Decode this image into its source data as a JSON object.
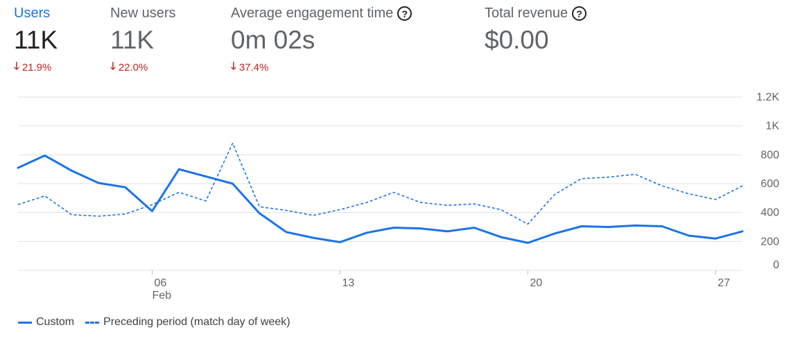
{
  "metrics": [
    {
      "title": "Users",
      "value": "11K",
      "delta": "21.9%",
      "active": true,
      "help": false
    },
    {
      "title": "New users",
      "value": "11K",
      "delta": "22.0%",
      "active": false,
      "help": false
    },
    {
      "title": "Average engagement time",
      "value": "0m 02s",
      "delta": "37.4%",
      "active": false,
      "help": true
    },
    {
      "title": "Total revenue",
      "value": "$0.00",
      "delta": "",
      "active": false,
      "help": true
    }
  ],
  "colors": {
    "accent": "#1a73e8",
    "negative": "#c5221f",
    "grid": "#e0e0e0",
    "muted": "#5f6368"
  },
  "chart_data": {
    "type": "line",
    "x": [
      "Feb 1",
      "Feb 2",
      "Feb 3",
      "Feb 4",
      "Feb 5",
      "Feb 6",
      "Feb 7",
      "Feb 8",
      "Feb 9",
      "Feb 10",
      "Feb 11",
      "Feb 12",
      "Feb 13",
      "Feb 14",
      "Feb 15",
      "Feb 16",
      "Feb 17",
      "Feb 18",
      "Feb 19",
      "Feb 20",
      "Feb 21",
      "Feb 22",
      "Feb 23",
      "Feb 24",
      "Feb 25",
      "Feb 26",
      "Feb 27",
      "Feb 28"
    ],
    "x_ticks": [
      {
        "index": 5,
        "label": "06",
        "sublabel": "Feb"
      },
      {
        "index": 12,
        "label": "13",
        "sublabel": ""
      },
      {
        "index": 19,
        "label": "20",
        "sublabel": ""
      },
      {
        "index": 26,
        "label": "27",
        "sublabel": ""
      }
    ],
    "series": [
      {
        "name": "Custom",
        "style": "solid",
        "values": [
          710,
          795,
          690,
          605,
          575,
          410,
          700,
          650,
          600,
          395,
          265,
          225,
          195,
          260,
          295,
          290,
          270,
          295,
          230,
          190,
          255,
          305,
          300,
          310,
          305,
          240,
          220,
          270
        ]
      },
      {
        "name": "Preceding period (match day of week)",
        "style": "dashed",
        "values": [
          455,
          515,
          385,
          375,
          390,
          455,
          540,
          480,
          880,
          440,
          415,
          380,
          420,
          470,
          540,
          470,
          450,
          460,
          420,
          320,
          525,
          635,
          645,
          665,
          585,
          530,
          490,
          585
        ]
      }
    ],
    "y_ticks": [
      "0",
      "200",
      "400",
      "600",
      "800",
      "1K",
      "1.2K"
    ],
    "ylim": [
      0,
      1200
    ],
    "xlabel": "",
    "ylabel": "",
    "grid": true,
    "legend_position": "bottom-left"
  }
}
